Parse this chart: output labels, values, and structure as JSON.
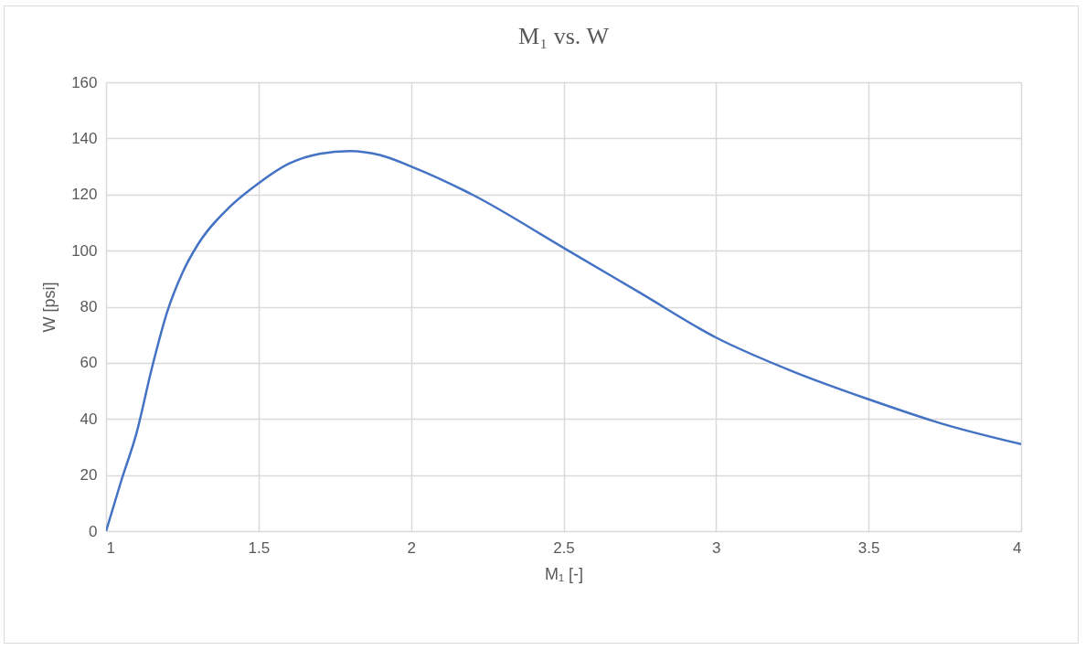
{
  "chart_data": {
    "type": "line",
    "title": "M₁ vs. W",
    "xlabel": "M₁  [-]",
    "ylabel": "W  [psi]",
    "x": [
      1,
      1.05,
      1.1,
      1.15,
      1.2,
      1.25,
      1.3,
      1.4,
      1.5,
      1.6,
      1.7,
      1.8,
      1.9,
      2.0,
      2.2,
      2.5,
      2.75,
      3.0,
      3.25,
      3.5,
      3.75,
      4.0
    ],
    "series": [
      {
        "color": "#4472c4",
        "values": [
          0,
          18,
          35,
          58,
          78,
          92,
          102,
          115,
          124,
          131,
          134.5,
          135.5,
          134,
          130,
          120,
          101,
          85,
          69,
          57,
          47,
          38,
          31
        ]
      }
    ],
    "xlim": [
      1,
      4
    ],
    "xticks": [
      1,
      1.5,
      2,
      2.5,
      3,
      3.5,
      4
    ],
    "ylim": [
      0,
      160
    ],
    "yticks": [
      0,
      20,
      40,
      60,
      80,
      100,
      120,
      140,
      160
    ],
    "grid": true,
    "marker": "none",
    "line_style": "solid"
  }
}
